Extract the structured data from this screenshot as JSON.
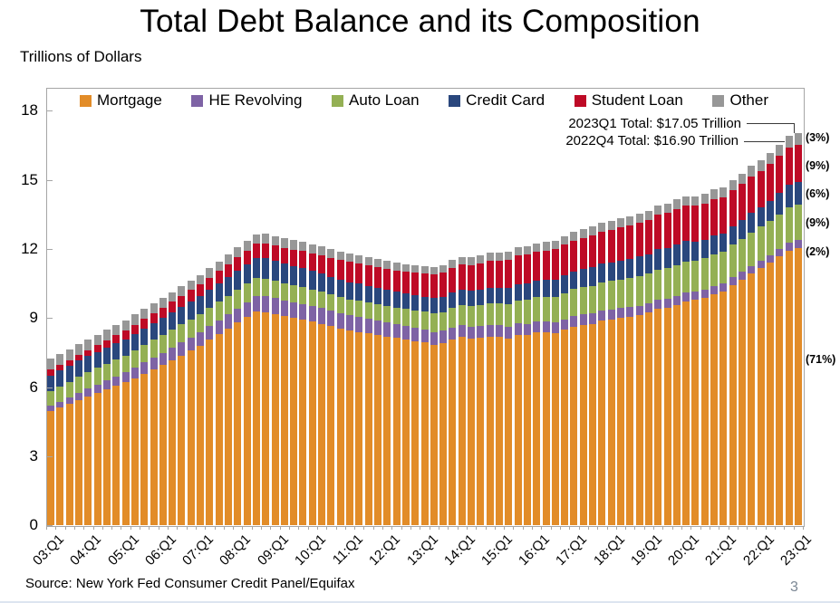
{
  "page": {
    "source": "Source: New York Fed Consumer Credit Panel/Equifax",
    "page_number": "3"
  },
  "chart_data": {
    "type": "bar",
    "stacked": true,
    "title": "Total Debt Balance and its Composition",
    "ylabel": "Trillions of Dollars",
    "legend_position": "top",
    "grid": false,
    "ylim": [
      0,
      19
    ],
    "yticks": [
      0,
      3,
      6,
      9,
      12,
      15,
      18
    ],
    "n_bars": 81,
    "x_first_quarter": "2003:Q1",
    "x_last_quarter": "2023:Q1",
    "x_tick_labels": [
      "03:Q1",
      "04:Q1",
      "05:Q1",
      "06:Q1",
      "07:Q1",
      "08:Q1",
      "09:Q1",
      "10:Q1",
      "11:Q1",
      "12:Q1",
      "13:Q1",
      "14:Q1",
      "15:Q1",
      "16:Q1",
      "17:Q1",
      "18:Q1",
      "19:Q1",
      "20:Q1",
      "21:Q1",
      "22:Q1",
      "23:Q1"
    ],
    "bars_per_tick": 4,
    "annotations": [
      {
        "text": "2023Q1 Total: $17.05 Trillion"
      },
      {
        "text": "2022Q4 Total: $16.90 Trillion"
      }
    ],
    "series": [
      {
        "name": "Mortgage",
        "color": "#E28C28",
        "share_label": "(71%)",
        "values": [
          4.94,
          5.11,
          5.27,
          5.44,
          5.6,
          5.75,
          5.9,
          6.05,
          6.2,
          6.39,
          6.58,
          6.76,
          6.95,
          7.16,
          7.37,
          7.59,
          7.8,
          8.05,
          8.3,
          8.55,
          8.8,
          9.05,
          9.29,
          9.26,
          9.15,
          9.07,
          9.0,
          8.92,
          8.85,
          8.75,
          8.65,
          8.55,
          8.45,
          8.39,
          8.33,
          8.26,
          8.2,
          8.13,
          8.06,
          8.0,
          7.93,
          7.84,
          7.9,
          8.05,
          8.17,
          8.1,
          8.13,
          8.17,
          8.17,
          8.12,
          8.26,
          8.25,
          8.37,
          8.36,
          8.35,
          8.48,
          8.63,
          8.69,
          8.74,
          8.88,
          8.94,
          9.0,
          9.05,
          9.12,
          9.24,
          9.41,
          9.44,
          9.56,
          9.71,
          9.78,
          9.86,
          10.04,
          10.16,
          10.44,
          10.67,
          10.93,
          11.18,
          11.39,
          11.67,
          11.92,
          12.04
        ]
      },
      {
        "name": "HE Revolving",
        "color": "#7E63A5",
        "share_label": "(2%)",
        "values": [
          0.24,
          0.26,
          0.28,
          0.31,
          0.33,
          0.36,
          0.39,
          0.41,
          0.44,
          0.47,
          0.49,
          0.52,
          0.54,
          0.55,
          0.56,
          0.57,
          0.58,
          0.59,
          0.6,
          0.61,
          0.62,
          0.64,
          0.66,
          0.69,
          0.71,
          0.7,
          0.69,
          0.69,
          0.68,
          0.68,
          0.67,
          0.67,
          0.66,
          0.65,
          0.63,
          0.62,
          0.6,
          0.59,
          0.58,
          0.56,
          0.55,
          0.55,
          0.54,
          0.54,
          0.53,
          0.53,
          0.52,
          0.52,
          0.51,
          0.51,
          0.5,
          0.5,
          0.49,
          0.48,
          0.47,
          0.47,
          0.46,
          0.46,
          0.45,
          0.44,
          0.44,
          0.43,
          0.42,
          0.42,
          0.41,
          0.4,
          0.4,
          0.39,
          0.39,
          0.38,
          0.37,
          0.36,
          0.35,
          0.34,
          0.33,
          0.32,
          0.32,
          0.32,
          0.32,
          0.34,
          0.34
        ]
      },
      {
        "name": "Auto Loan",
        "color": "#94B054",
        "share_label": "(9%)",
        "values": [
          0.64,
          0.66,
          0.68,
          0.7,
          0.72,
          0.72,
          0.73,
          0.73,
          0.73,
          0.74,
          0.75,
          0.77,
          0.78,
          0.78,
          0.79,
          0.79,
          0.79,
          0.8,
          0.8,
          0.81,
          0.81,
          0.8,
          0.79,
          0.77,
          0.76,
          0.74,
          0.73,
          0.72,
          0.71,
          0.71,
          0.7,
          0.7,
          0.7,
          0.71,
          0.71,
          0.72,
          0.73,
          0.74,
          0.76,
          0.77,
          0.79,
          0.8,
          0.82,
          0.84,
          0.86,
          0.88,
          0.9,
          0.93,
          0.95,
          0.98,
          1.01,
          1.03,
          1.06,
          1.09,
          1.11,
          1.14,
          1.17,
          1.19,
          1.2,
          1.22,
          1.23,
          1.24,
          1.26,
          1.27,
          1.28,
          1.3,
          1.32,
          1.33,
          1.35,
          1.34,
          1.36,
          1.37,
          1.38,
          1.42,
          1.44,
          1.46,
          1.47,
          1.5,
          1.52,
          1.55,
          1.56
        ]
      },
      {
        "name": "Credit Card",
        "color": "#2A477D",
        "share_label": "(6%)",
        "values": [
          0.69,
          0.69,
          0.69,
          0.7,
          0.7,
          0.7,
          0.7,
          0.71,
          0.71,
          0.71,
          0.72,
          0.73,
          0.74,
          0.74,
          0.75,
          0.76,
          0.77,
          0.78,
          0.79,
          0.81,
          0.82,
          0.83,
          0.85,
          0.87,
          0.85,
          0.85,
          0.84,
          0.84,
          0.82,
          0.8,
          0.78,
          0.76,
          0.75,
          0.74,
          0.72,
          0.71,
          0.7,
          0.69,
          0.68,
          0.68,
          0.66,
          0.67,
          0.67,
          0.68,
          0.66,
          0.67,
          0.68,
          0.7,
          0.68,
          0.7,
          0.71,
          0.73,
          0.71,
          0.73,
          0.75,
          0.78,
          0.76,
          0.78,
          0.81,
          0.83,
          0.81,
          0.83,
          0.84,
          0.87,
          0.85,
          0.87,
          0.88,
          0.93,
          0.89,
          0.82,
          0.81,
          0.82,
          0.77,
          0.79,
          0.8,
          0.86,
          0.84,
          0.89,
          0.93,
          0.99,
          0.99
        ]
      },
      {
        "name": "Student Loan",
        "color": "#BE0A26",
        "share_label": "(9%)",
        "values": [
          0.24,
          0.25,
          0.25,
          0.26,
          0.26,
          0.29,
          0.32,
          0.35,
          0.38,
          0.4,
          0.42,
          0.43,
          0.45,
          0.47,
          0.48,
          0.5,
          0.51,
          0.53,
          0.55,
          0.57,
          0.59,
          0.61,
          0.63,
          0.65,
          0.67,
          0.69,
          0.71,
          0.74,
          0.76,
          0.79,
          0.81,
          0.84,
          0.87,
          0.88,
          0.89,
          0.89,
          0.9,
          0.92,
          0.94,
          0.97,
          0.99,
          1.02,
          1.05,
          1.08,
          1.11,
          1.13,
          1.15,
          1.17,
          1.19,
          1.21,
          1.23,
          1.24,
          1.26,
          1.28,
          1.3,
          1.32,
          1.34,
          1.36,
          1.38,
          1.39,
          1.41,
          1.43,
          1.45,
          1.47,
          1.49,
          1.51,
          1.52,
          1.53,
          1.54,
          1.55,
          1.56,
          1.57,
          1.58,
          1.58,
          1.59,
          1.59,
          1.59,
          1.59,
          1.6,
          1.6,
          1.6
        ]
      },
      {
        "name": "Other",
        "color": "#979797",
        "share_label": "(3%)",
        "values": [
          0.48,
          0.47,
          0.46,
          0.46,
          0.45,
          0.45,
          0.45,
          0.45,
          0.45,
          0.44,
          0.43,
          0.43,
          0.42,
          0.42,
          0.42,
          0.42,
          0.42,
          0.42,
          0.42,
          0.42,
          0.42,
          0.42,
          0.42,
          0.42,
          0.42,
          0.41,
          0.41,
          0.4,
          0.39,
          0.38,
          0.38,
          0.37,
          0.36,
          0.36,
          0.35,
          0.35,
          0.34,
          0.34,
          0.33,
          0.33,
          0.33,
          0.33,
          0.33,
          0.33,
          0.33,
          0.33,
          0.34,
          0.34,
          0.34,
          0.35,
          0.35,
          0.36,
          0.36,
          0.37,
          0.37,
          0.38,
          0.38,
          0.38,
          0.39,
          0.39,
          0.39,
          0.4,
          0.4,
          0.4,
          0.4,
          0.41,
          0.41,
          0.41,
          0.42,
          0.42,
          0.42,
          0.42,
          0.42,
          0.43,
          0.43,
          0.44,
          0.44,
          0.47,
          0.49,
          0.51,
          0.52
        ]
      }
    ]
  }
}
